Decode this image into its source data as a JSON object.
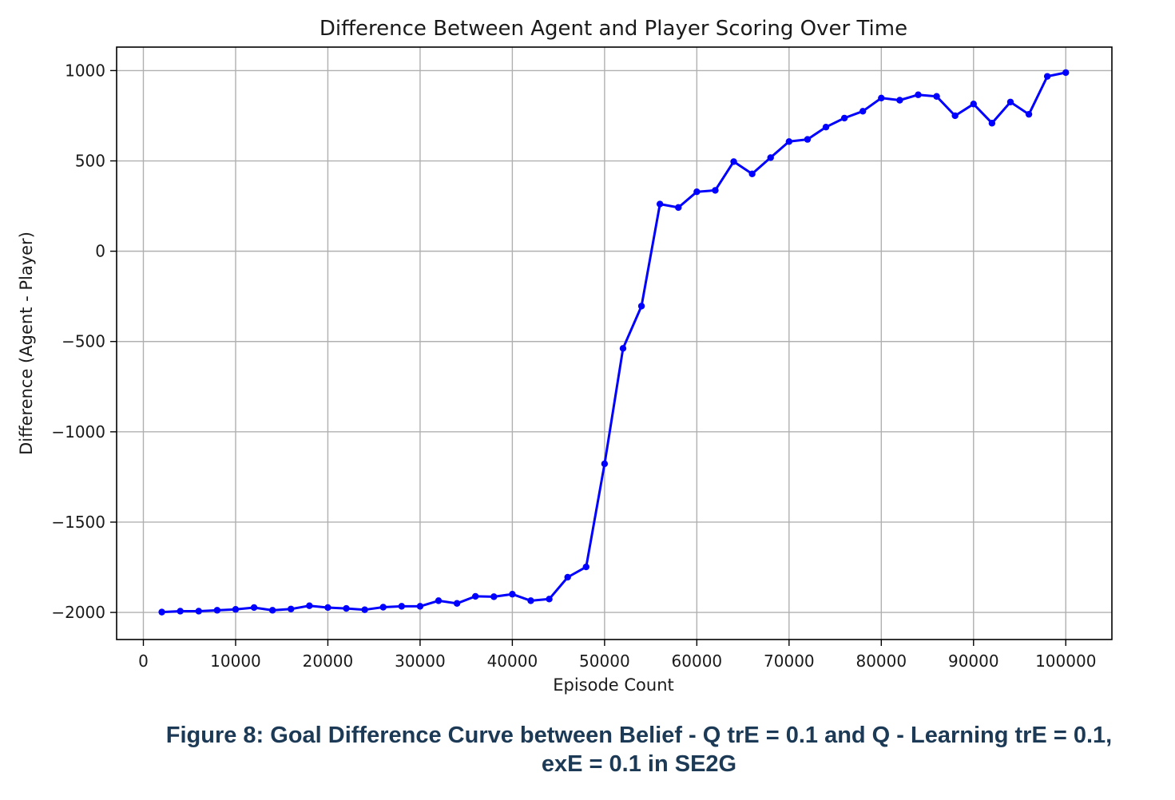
{
  "chart_data": {
    "type": "line",
    "title": "Difference Between Agent and Player Scoring Over Time",
    "xlabel": "Episode Count",
    "ylabel": "Difference (Agent - Player)",
    "xlim": [
      -2900,
      105000
    ],
    "ylim": [
      -2150,
      1130
    ],
    "xticks": [
      0,
      10000,
      20000,
      30000,
      40000,
      50000,
      60000,
      70000,
      80000,
      90000,
      100000
    ],
    "xtick_labels": [
      "0",
      "10000",
      "20000",
      "30000",
      "40000",
      "50000",
      "60000",
      "70000",
      "80000",
      "90000",
      "100000"
    ],
    "yticks": [
      1000,
      500,
      0,
      -500,
      -1000,
      -1500,
      -2000
    ],
    "ytick_labels": [
      "1000",
      "500",
      "0",
      "−500",
      "−1000",
      "−1500",
      "−2000"
    ],
    "grid": true,
    "series": [
      {
        "color": "#0000ff",
        "marker": "circle",
        "x": [
          2000,
          4000,
          6000,
          8000,
          10000,
          12000,
          14000,
          16000,
          18000,
          20000,
          22000,
          24000,
          26000,
          28000,
          30000,
          32000,
          34000,
          36000,
          38000,
          40000,
          42000,
          44000,
          46000,
          48000,
          50000,
          52000,
          54000,
          56000,
          58000,
          60000,
          62000,
          64000,
          66000,
          68000,
          70000,
          72000,
          74000,
          76000,
          78000,
          80000,
          82000,
          84000,
          86000,
          88000,
          90000,
          92000,
          94000,
          96000,
          98000,
          100000
        ],
        "y": [
          -1998,
          -1993,
          -1993,
          -1988,
          -1983,
          -1973,
          -1988,
          -1981,
          -1963,
          -1973,
          -1978,
          -1985,
          -1971,
          -1966,
          -1966,
          -1935,
          -1950,
          -1911,
          -1913,
          -1899,
          -1935,
          -1926,
          -1805,
          -1748,
          -1177,
          -538,
          -304,
          261,
          242,
          329,
          337,
          496,
          428,
          518,
          607,
          619,
          687,
          737,
          775,
          848,
          836,
          866,
          857,
          750,
          815,
          709,
          826,
          758,
          968,
          989
        ]
      }
    ]
  },
  "caption": {
    "line1": "Figure 8: Goal Difference Curve between Belief - Q trE = 0.1 and Q - Learning trE = 0.1,",
    "line2": "exE = 0.1 in SE2G"
  }
}
